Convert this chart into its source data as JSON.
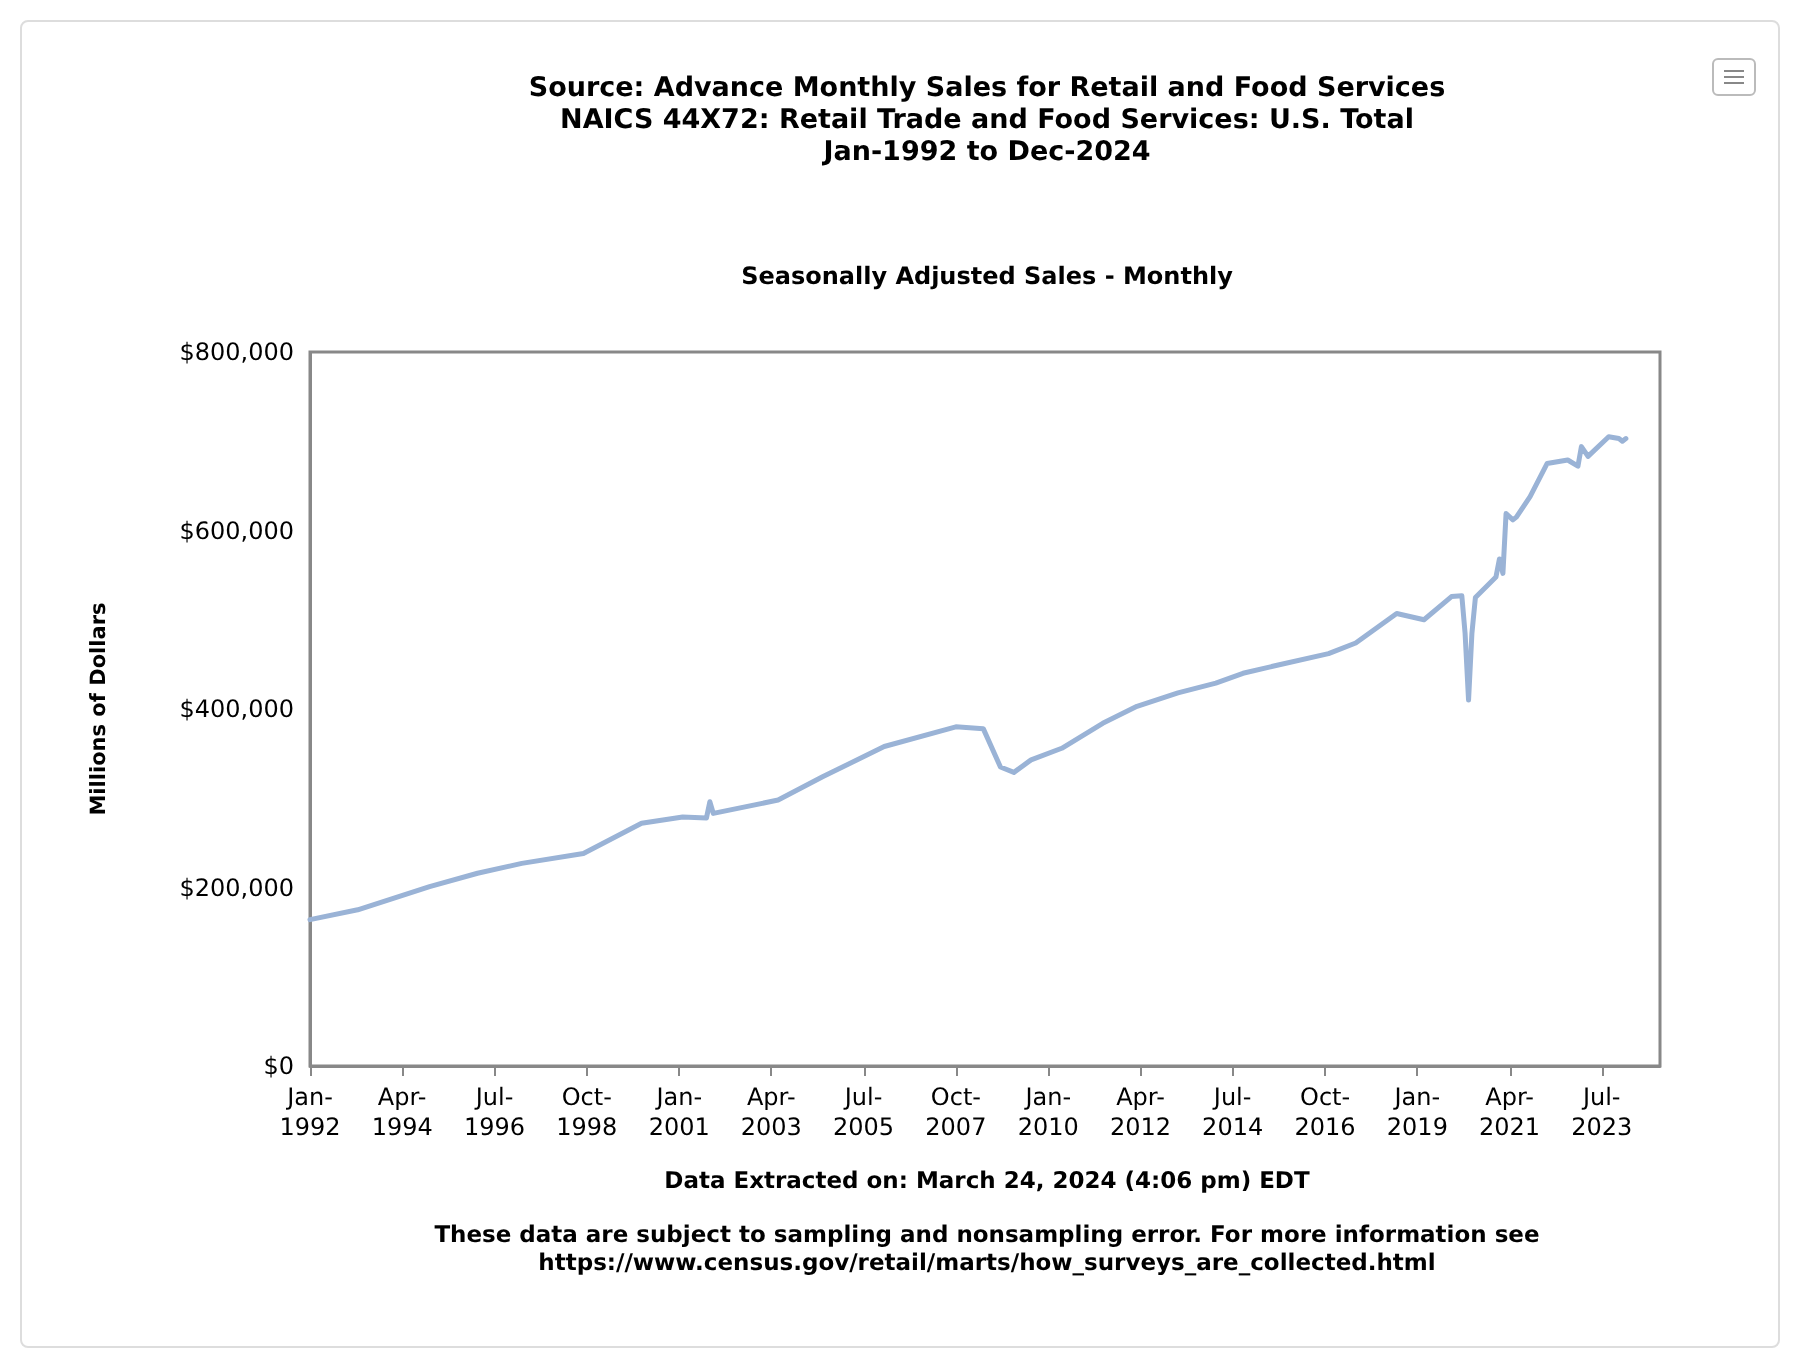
{
  "chart_data": {
    "type": "line",
    "title": "Source: Advance Monthly Sales for Retail and Food Services\nNAICS 44X72: Retail Trade and Food Services: U.S. Total\nJan-1992 to Dec-2024",
    "subtitle": "Seasonally Adjusted Sales - Monthly",
    "ylabel": "Millions of Dollars",
    "annotations": [
      "Data Extracted on: March 24, 2024 (4:06 pm) EDT",
      "These data are subject to sampling and nonsampling error. For more information see\nhttps://www.census.gov/retail/marts/how_surveys_are_collected.html"
    ],
    "x": [
      "1992-01",
      "1993-03",
      "1994-12",
      "1996-02",
      "1997-03",
      "1998-09",
      "2000-02",
      "2001-02",
      "2001-09",
      "2001-10",
      "2001-11",
      "2003-06",
      "2004-07",
      "2006-01",
      "2007-10",
      "2008-06",
      "2008-11",
      "2009-03",
      "2009-08",
      "2010-05",
      "2011-05",
      "2012-03",
      "2013-03",
      "2014-02",
      "2014-10",
      "2015-08",
      "2016-11",
      "2017-07",
      "2018-07",
      "2019-03",
      "2019-11",
      "2020-02",
      "2020-03",
      "2020-04",
      "2020-05",
      "2020-06",
      "2020-12",
      "2021-01",
      "2021-02",
      "2021-03",
      "2021-05",
      "2021-06",
      "2021-10",
      "2022-03",
      "2022-09",
      "2022-12",
      "2023-01",
      "2023-03",
      "2023-09",
      "2023-12",
      "2024-01",
      "2024-02"
    ],
    "series": [
      {
        "color": "#9ab3d6",
        "values": [
          164000,
          175000,
          201000,
          216000,
          227000,
          238000,
          272000,
          279000,
          278000,
          296000,
          283000,
          298000,
          324000,
          358000,
          380000,
          378000,
          335000,
          329000,
          343000,
          356000,
          384000,
          403000,
          418000,
          429000,
          440000,
          449000,
          462000,
          474000,
          507000,
          500000,
          526000,
          527000,
          485000,
          410000,
          485000,
          525000,
          548000,
          568000,
          552000,
          619000,
          612000,
          615000,
          638000,
          675000,
          679000,
          672000,
          694000,
          683000,
          705000,
          703000,
          700000,
          703000
        ]
      }
    ],
    "xlim": [
      "1992-01",
      "2024-12"
    ],
    "xticks": [
      {
        "value": "1992-01",
        "label": "Jan-1992"
      },
      {
        "value": "1994-04",
        "label": "Apr-1994"
      },
      {
        "value": "1996-07",
        "label": "Jul-1996"
      },
      {
        "value": "1998-10",
        "label": "Oct-1998"
      },
      {
        "value": "2001-01",
        "label": "Jan-2001"
      },
      {
        "value": "2003-04",
        "label": "Apr-2003"
      },
      {
        "value": "2005-07",
        "label": "Jul-2005"
      },
      {
        "value": "2007-10",
        "label": "Oct-2007"
      },
      {
        "value": "2010-01",
        "label": "Jan-2010"
      },
      {
        "value": "2012-04",
        "label": "Apr-2012"
      },
      {
        "value": "2014-07",
        "label": "Jul-2014"
      },
      {
        "value": "2016-10",
        "label": "Oct-2016"
      },
      {
        "value": "2019-01",
        "label": "Jan-2019"
      },
      {
        "value": "2021-04",
        "label": "Apr-2021"
      },
      {
        "value": "2023-07",
        "label": "Jul-2023"
      }
    ],
    "ylim": [
      0,
      800000
    ],
    "yticks": [
      {
        "value": 0,
        "label": "$0"
      },
      {
        "value": 200000,
        "label": "$200,000"
      },
      {
        "value": 400000,
        "label": "$400,000"
      },
      {
        "value": 600000,
        "label": "$600,000"
      },
      {
        "value": 800000,
        "label": "$800,000"
      }
    ],
    "grid": false,
    "marker": "none",
    "line_style": "solid"
  }
}
